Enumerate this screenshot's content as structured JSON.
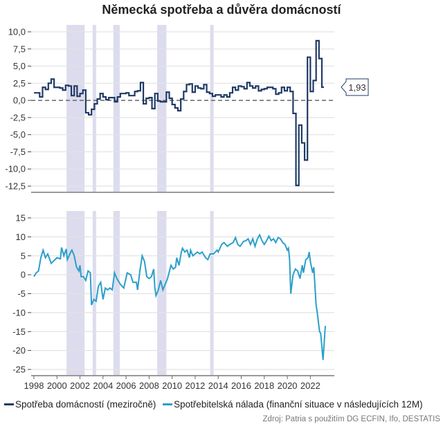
{
  "chart_data": [
    {
      "type": "line",
      "title": "Německá spotřeba a důvěra domácností",
      "step": true,
      "ylim": [
        -12.5,
        10.0
      ],
      "yticks": [
        "10,0",
        "7,5",
        "5,0",
        "2,5",
        "0,0",
        "-2,5",
        "-5,0",
        "-7,5",
        "-10,0",
        "-12,5"
      ],
      "ytick_values": [
        10,
        7.5,
        5,
        2.5,
        0,
        -2.5,
        -5,
        -7.5,
        -10,
        -12.5
      ],
      "grid": true,
      "zero_line": "dashed",
      "last_value_label": "1,93",
      "series": [
        {
          "name": "Spotřeba domácností (meziročně)",
          "color": "#1f3a64",
          "x_start": 1998.0,
          "x_step": 0.25,
          "values": [
            1.1,
            1.1,
            0.5,
            1.9,
            1.6,
            2.5,
            3.1,
            1.9,
            1.9,
            1.8,
            1.5,
            2.2,
            2.1,
            0.7,
            2.1,
            0.6,
            1.0,
            1.5,
            -1.8,
            -2.1,
            -1.3,
            -0.5,
            0.2,
            1.0,
            0.5,
            0.1,
            0.4,
            0.4,
            -0.2,
            0.5,
            1.0,
            1.0,
            1.1,
            0.7,
            0.7,
            1.3,
            1.4,
            2.6,
            -0.5,
            0.3,
            0.4,
            -1.2,
            1.0,
            -0.1,
            -0.2,
            -0.2,
            1.2,
            0.3,
            -0.6,
            -1.1,
            -1.5,
            0.2,
            1.3,
            2.3,
            2.4,
            1.2,
            2.1,
            1.8,
            1.7,
            2.3,
            1.2,
            1.0,
            0.6,
            0.8,
            0.8,
            0.5,
            0.8,
            0.5,
            1.1,
            1.9,
            1.5,
            2.1,
            2.0,
            1.7,
            2.6,
            2.1,
            1.8,
            2.1,
            1.4,
            1.6,
            1.7,
            1.9,
            1.9,
            1.7,
            0.9,
            1.1,
            1.9,
            1.4,
            1.9,
            1.3,
            -1.9,
            -12.4,
            -3.6,
            -6.2,
            -8.7,
            6.3,
            1.3,
            2.9,
            8.7,
            6.1,
            1.93
          ]
        }
      ]
    },
    {
      "type": "line",
      "ylim": [
        -25,
        15
      ],
      "yticks": [
        "15",
        "10",
        "5",
        "0",
        "-5",
        "-10",
        "-15",
        "-20",
        "-25"
      ],
      "ytick_values": [
        15,
        10,
        5,
        0,
        -5,
        -10,
        -15,
        -20,
        -25
      ],
      "xticks": [
        "1998",
        "2000",
        "2002",
        "2004",
        "2006",
        "2008",
        "2010",
        "2012",
        "2014",
        "2016",
        "2018",
        "2020",
        "2022"
      ],
      "xtick_values": [
        1998,
        2000,
        2002,
        2004,
        2006,
        2008,
        2010,
        2012,
        2014,
        2016,
        2018,
        2020,
        2022
      ],
      "grid": true,
      "series": [
        {
          "name": "Spotřebitelská nálada (finanční situace v následujících 12M)",
          "color": "#2a9fc9",
          "x": [
            1998.0,
            1998.2,
            1998.4,
            1998.6,
            1998.8,
            1999.0,
            1999.2,
            1999.5,
            2000.0,
            2000.3,
            2000.4,
            2000.6,
            2000.8,
            2000.9,
            2001.2,
            2001.3,
            2001.5,
            2001.7,
            2001.9,
            2002.0,
            2002.1,
            2002.3,
            2002.5,
            2002.7,
            2002.9,
            2003.0,
            2003.2,
            2003.4,
            2003.6,
            2003.8,
            2004.0,
            2004.2,
            2004.4,
            2004.6,
            2004.8,
            2005.0,
            2005.2,
            2005.5,
            2005.8,
            2006.1,
            2006.4,
            2006.6,
            2006.9,
            2007.0,
            2007.2,
            2007.4,
            2007.6,
            2007.8,
            2008.0,
            2008.2,
            2008.4,
            2008.5,
            2008.6,
            2008.8,
            2009.0,
            2009.2,
            2009.4,
            2009.6,
            2009.9,
            2010.1,
            2010.3,
            2010.4,
            2010.6,
            2010.8,
            2010.9,
            2011.1,
            2011.3,
            2011.5,
            2011.6,
            2011.8,
            2012.0,
            2012.2,
            2012.4,
            2012.6,
            2012.9,
            2013.1,
            2013.3,
            2013.6,
            2013.9,
            2014.0,
            2014.3,
            2014.5,
            2014.8,
            2015.0,
            2015.3,
            2015.5,
            2015.7,
            2015.9,
            2016.2,
            2016.4,
            2016.6,
            2016.8,
            2017.0,
            2017.2,
            2017.4,
            2017.6,
            2017.8,
            2018.0,
            2018.2,
            2018.4,
            2018.6,
            2018.8,
            2019.0,
            2019.2,
            2019.4,
            2019.6,
            2019.8,
            2020.0,
            2020.1,
            2020.2,
            2020.3,
            2020.5,
            2020.7,
            2020.9,
            2021.1,
            2021.3,
            2021.4,
            2021.6,
            2021.8,
            2021.9,
            2022.0,
            2022.2,
            2022.3,
            2022.4,
            2022.5,
            2022.6,
            2022.8,
            2022.9,
            2023.1,
            2023.3
          ],
          "values": [
            -0.5,
            0.5,
            1.0,
            4.5,
            6.5,
            4.5,
            5.5,
            3.0,
            4.5,
            4.2,
            7.2,
            5.0,
            6.8,
            4.0,
            6.0,
            6.5,
            5.0,
            2.0,
            1.0,
            2.5,
            -0.5,
            -0.5,
            -1.5,
            1.0,
            0.5,
            -8.0,
            -6.5,
            -7.0,
            -3.0,
            -2.0,
            -6.5,
            -3.5,
            -4.0,
            -3.5,
            -4.0,
            0.5,
            -1.0,
            -2.5,
            -3.5,
            0.5,
            0.0,
            -2.0,
            -2.0,
            -4.0,
            1.0,
            5.0,
            3.5,
            -0.5,
            -1.0,
            -0.5,
            1.5,
            -3.5,
            -5.5,
            -4.0,
            -1.5,
            -4.0,
            -2.5,
            -1.0,
            2.5,
            1.5,
            2.0,
            4.5,
            2.5,
            6.0,
            7.0,
            6.0,
            6.5,
            4.5,
            6.5,
            5.0,
            5.5,
            6.0,
            5.5,
            6.0,
            4.5,
            4.0,
            5.5,
            5.5,
            6.5,
            6.0,
            8.0,
            8.5,
            7.5,
            8.0,
            8.5,
            9.8,
            8.0,
            7.5,
            8.8,
            9.0,
            9.5,
            8.0,
            9.5,
            7.5,
            9.5,
            10.5,
            9.0,
            8.0,
            9.0,
            10.2,
            9.0,
            9.5,
            8.5,
            9.8,
            9.5,
            8.5,
            8.0,
            6.5,
            7.0,
            4.0,
            -5.0,
            0.0,
            1.5,
            1.0,
            -1.0,
            2.5,
            0.5,
            4.0,
            4.5,
            6.0,
            3.5,
            0.5,
            2.0,
            -3.0,
            -8.0,
            -10.0,
            -15.0,
            -15.5,
            -22.5,
            -13.5
          ]
        }
      ]
    }
  ],
  "shaded_periods": [
    [
      2000.83,
      2002.4
    ],
    [
      2003.1,
      2003.4
    ],
    [
      2004.9,
      2005.45
    ],
    [
      2008.7,
      2009.5
    ],
    [
      2013.3,
      2013.6
    ]
  ],
  "shade_color": "#dcdcee",
  "legend": [
    {
      "label": "Spotřeba domácností (meziročně)",
      "color": "#1f3a64"
    },
    {
      "label": "Spotřebitelská nálada (finanční situace v následujících 12M)",
      "color": "#2a9fc9"
    }
  ],
  "source": "Zdroj: Patria s použitím DG ECFIN, Ifo, DESTATIS"
}
